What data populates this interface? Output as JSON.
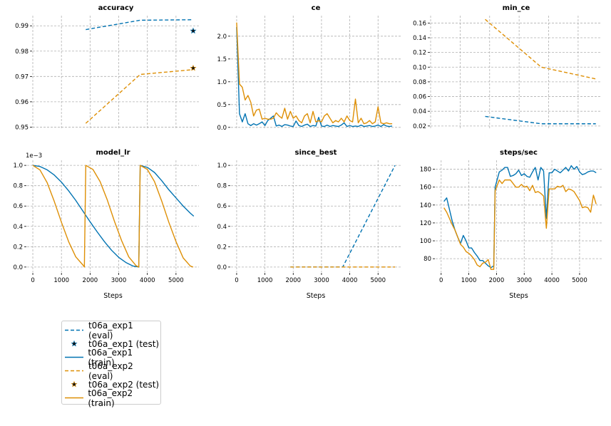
{
  "colors": {
    "exp1": "#0173b2",
    "exp2": "#de8f05"
  },
  "legend": [
    {
      "label": "t06a_exp1 (eval)",
      "style": "dashed",
      "color": "#0173b2"
    },
    {
      "label": "t06a_exp1 (test)",
      "style": "star",
      "color": "#0173b2"
    },
    {
      "label": "t06a_exp1 (train)",
      "style": "solid",
      "color": "#0173b2"
    },
    {
      "label": "t06a_exp2 (eval)",
      "style": "dashed",
      "color": "#de8f05"
    },
    {
      "label": "t06a_exp2 (test)",
      "style": "star",
      "color": "#de8f05"
    },
    {
      "label": "t06a_exp2 (train)",
      "style": "solid",
      "color": "#de8f05"
    }
  ],
  "chart_data": [
    {
      "type": "line",
      "title": "accuracy",
      "xlabel": "",
      "ylabel": "",
      "xlim": [
        0,
        5800
      ],
      "ylim": [
        0.949,
        0.994
      ],
      "yticks": [
        0.95,
        0.96,
        0.97,
        0.98,
        0.99
      ],
      "ytick_labels": [
        "0.95",
        "0.96",
        "0.97",
        "0.98",
        "0.99"
      ],
      "xticks": [
        0,
        1000,
        2000,
        3000,
        4000,
        5000
      ],
      "show_xtick_labels": false,
      "series": [
        {
          "color": "#0173b2",
          "style": "dashed",
          "x": [
            1850,
            3750,
            5600
          ],
          "y": [
            0.9885,
            0.9922,
            0.9924
          ]
        },
        {
          "color": "#0173b2",
          "style": "star",
          "x": [
            5600
          ],
          "y": [
            0.988
          ]
        },
        {
          "color": "#de8f05",
          "style": "dashed",
          "x": [
            1850,
            3750,
            5600
          ],
          "y": [
            0.9515,
            0.9708,
            0.9727
          ]
        },
        {
          "color": "#de8f05",
          "style": "star",
          "x": [
            5600
          ],
          "y": [
            0.9733
          ]
        }
      ]
    },
    {
      "type": "line",
      "title": "ce",
      "xlabel": "",
      "ylabel": "",
      "xlim": [
        -200,
        5800
      ],
      "ylim": [
        -0.05,
        2.45
      ],
      "yticks": [
        0,
        0.5,
        1,
        1.5,
        2
      ],
      "ytick_labels": [
        "0.0",
        "0.5",
        "1.0",
        "1.5",
        "2.0"
      ],
      "xticks": [
        0,
        1000,
        2000,
        3000,
        4000,
        5000
      ],
      "show_xtick_labels": false,
      "series": [
        {
          "color": "#0173b2",
          "style": "solid",
          "x": [
            0,
            100,
            200,
            300,
            400,
            500,
            600,
            700,
            800,
            900,
            1000,
            1100,
            1200,
            1300,
            1400,
            1500,
            1600,
            1700,
            1800,
            1900,
            2000,
            2100,
            2200,
            2300,
            2400,
            2500,
            2600,
            2700,
            2800,
            2900,
            3000,
            3100,
            3200,
            3300,
            3400,
            3500,
            3600,
            3700,
            3800,
            3900,
            4000,
            4100,
            4200,
            4300,
            4400,
            4500,
            4600,
            4700,
            4800,
            4900,
            5000,
            5100,
            5200,
            5300,
            5400,
            5500
          ],
          "y": [
            2.2,
            0.3,
            0.12,
            0.3,
            0.08,
            0.04,
            0.08,
            0.05,
            0.08,
            0.12,
            0.04,
            0.15,
            0.2,
            0.25,
            0.03,
            0.05,
            0.02,
            0.06,
            0.05,
            0.03,
            0.02,
            0.14,
            0.04,
            0.02,
            0.05,
            0.07,
            0.02,
            0.04,
            0.03,
            0.22,
            0.03,
            0.02,
            0.05,
            0.02,
            0.04,
            0.03,
            0.02,
            0.05,
            0.1,
            0.02,
            0.04,
            0.02,
            0.03,
            0.02,
            0.05,
            0.02,
            0.03,
            0.04,
            0.02,
            0.03,
            0.05,
            0.02,
            0.06,
            0.03,
            0.02,
            0.03
          ]
        },
        {
          "color": "#de8f05",
          "style": "solid",
          "x": [
            0,
            100,
            200,
            300,
            400,
            500,
            600,
            700,
            800,
            900,
            1000,
            1100,
            1200,
            1300,
            1400,
            1500,
            1600,
            1700,
            1800,
            1900,
            2000,
            2100,
            2200,
            2300,
            2400,
            2500,
            2600,
            2700,
            2800,
            2900,
            3000,
            3100,
            3200,
            3300,
            3400,
            3500,
            3600,
            3700,
            3800,
            3900,
            4000,
            4100,
            4200,
            4300,
            4400,
            4500,
            4600,
            4700,
            4800,
            4900,
            5000,
            5100,
            5200,
            5300,
            5400,
            5500
          ],
          "y": [
            2.3,
            0.95,
            0.88,
            0.6,
            0.7,
            0.55,
            0.25,
            0.38,
            0.4,
            0.18,
            0.2,
            0.18,
            0.18,
            0.2,
            0.32,
            0.25,
            0.2,
            0.42,
            0.18,
            0.35,
            0.2,
            0.25,
            0.15,
            0.1,
            0.25,
            0.3,
            0.1,
            0.35,
            0.12,
            0.15,
            0.12,
            0.25,
            0.3,
            0.2,
            0.1,
            0.15,
            0.12,
            0.2,
            0.12,
            0.25,
            0.15,
            0.12,
            0.62,
            0.1,
            0.2,
            0.08,
            0.1,
            0.15,
            0.08,
            0.12,
            0.45,
            0.1,
            0.08,
            0.1,
            0.08,
            0.08
          ]
        }
      ]
    },
    {
      "type": "line",
      "title": "min_ce",
      "xlabel": "",
      "ylabel": "",
      "xlim": [
        0,
        5800
      ],
      "ylim": [
        0.015,
        0.17
      ],
      "yticks": [
        0.02,
        0.04,
        0.06,
        0.08,
        0.1,
        0.12,
        0.14,
        0.16
      ],
      "ytick_labels": [
        "0.02",
        "0.04",
        "0.06",
        "0.08",
        "0.10",
        "0.12",
        "0.14",
        "0.16"
      ],
      "xticks": [
        0,
        1000,
        2000,
        3000,
        4000,
        5000
      ],
      "show_xtick_labels": false,
      "series": [
        {
          "color": "#0173b2",
          "style": "dashed",
          "x": [
            1850,
            3750,
            5600
          ],
          "y": [
            0.033,
            0.023,
            0.023
          ]
        },
        {
          "color": "#de8f05",
          "style": "dashed",
          "x": [
            1850,
            3750,
            5600
          ],
          "y": [
            0.165,
            0.1,
            0.084
          ]
        }
      ]
    },
    {
      "type": "line",
      "title": "model_lr",
      "xlabel": "Steps",
      "ylabel": "",
      "multiplier": "1e−3",
      "xlim": [
        -200,
        5800
      ],
      "ylim": [
        -0.05,
        1.05
      ],
      "yticks": [
        0,
        0.2,
        0.4,
        0.6,
        0.8,
        1.0
      ],
      "ytick_labels": [
        "0.0",
        "0.2",
        "0.4",
        "0.6",
        "0.8",
        "1.0"
      ],
      "xticks": [
        0,
        1000,
        2000,
        3000,
        4000,
        5000
      ],
      "xtick_labels": [
        "0",
        "1000",
        "2000",
        "3000",
        "4000",
        "5000"
      ],
      "show_xtick_labels": true,
      "series": [
        {
          "color": "#0173b2",
          "style": "solid",
          "x": [
            0,
            250,
            500,
            750,
            1000,
            1250,
            1500,
            1750,
            2000,
            2250,
            2500,
            2750,
            3000,
            3250,
            3500,
            3700,
            3750,
            4000,
            4250,
            4500,
            4750,
            5000,
            5250,
            5500,
            5620
          ],
          "y": [
            1.0,
            0.989,
            0.956,
            0.905,
            0.835,
            0.75,
            0.655,
            0.55,
            0.445,
            0.345,
            0.25,
            0.165,
            0.095,
            0.045,
            0.01,
            0.0,
            1.0,
            0.98,
            0.93,
            0.85,
            0.76,
            0.68,
            0.6,
            0.53,
            0.5
          ]
        },
        {
          "color": "#de8f05",
          "style": "solid",
          "x": [
            0,
            250,
            500,
            750,
            1000,
            1250,
            1500,
            1750,
            1800,
            1850,
            2100,
            2350,
            2600,
            2850,
            3100,
            3350,
            3600,
            3700,
            3750,
            4000,
            4250,
            4500,
            4750,
            5000,
            5250,
            5500,
            5600
          ],
          "y": [
            1.0,
            0.955,
            0.83,
            0.645,
            0.44,
            0.25,
            0.1,
            0.02,
            0.0,
            1.0,
            0.96,
            0.84,
            0.66,
            0.45,
            0.26,
            0.1,
            0.015,
            0.0,
            1.0,
            0.96,
            0.84,
            0.65,
            0.44,
            0.25,
            0.09,
            0.01,
            0.0
          ]
        }
      ]
    },
    {
      "type": "line",
      "title": "since_best",
      "xlabel": "Steps",
      "ylabel": "",
      "xlim": [
        -200,
        5800
      ],
      "ylim": [
        -0.05,
        1.05
      ],
      "yticks": [
        0,
        0.2,
        0.4,
        0.6,
        0.8,
        1.0
      ],
      "ytick_labels": [
        "0.0",
        "0.2",
        "0.4",
        "0.6",
        "0.8",
        "1.0"
      ],
      "xticks": [
        0,
        1000,
        2000,
        3000,
        4000,
        5000
      ],
      "xtick_labels": [
        "0",
        "1000",
        "2000",
        "3000",
        "4000",
        "5000"
      ],
      "show_xtick_labels": true,
      "series": [
        {
          "color": "#0173b2",
          "style": "dashed",
          "x": [
            1900,
            3750,
            5600
          ],
          "y": [
            0.0,
            0.0,
            1.0
          ]
        },
        {
          "color": "#de8f05",
          "style": "dashed",
          "x": [
            1900,
            3750,
            5600
          ],
          "y": [
            0.0,
            0.0,
            0.0
          ]
        }
      ]
    },
    {
      "type": "line",
      "title": "steps/sec",
      "xlabel": "Steps",
      "ylabel": "",
      "xlim": [
        -200,
        5800
      ],
      "ylim": [
        65,
        190
      ],
      "yticks": [
        80,
        100,
        120,
        140,
        160,
        180
      ],
      "ytick_labels": [
        "80",
        "100",
        "120",
        "140",
        "160",
        "180"
      ],
      "xticks": [
        0,
        1000,
        2000,
        3000,
        4000,
        5000
      ],
      "xtick_labels": [
        "0",
        "1000",
        "2000",
        "3000",
        "4000",
        "5000"
      ],
      "show_xtick_labels": true,
      "series": [
        {
          "color": "#0173b2",
          "style": "solid",
          "x": [
            100,
            200,
            300,
            400,
            500,
            600,
            700,
            800,
            900,
            1000,
            1100,
            1200,
            1300,
            1400,
            1500,
            1600,
            1700,
            1800,
            1900,
            1950,
            2100,
            2200,
            2300,
            2400,
            2500,
            2600,
            2700,
            2800,
            2900,
            3000,
            3100,
            3200,
            3300,
            3400,
            3500,
            3600,
            3700,
            3800,
            3900,
            4000,
            4100,
            4200,
            4300,
            4400,
            4500,
            4600,
            4700,
            4800,
            4900,
            5000,
            5100,
            5200,
            5300,
            5400,
            5500,
            5600
          ],
          "y": [
            144,
            148,
            135,
            122,
            112,
            104,
            97,
            106,
            100,
            92,
            92,
            87,
            83,
            78,
            78,
            75,
            72,
            70,
            72,
            160,
            177,
            179,
            182,
            182,
            172,
            173,
            175,
            179,
            173,
            175,
            172,
            171,
            177,
            182,
            168,
            182,
            178,
            125,
            176,
            176,
            180,
            178,
            176,
            179,
            182,
            178,
            184,
            180,
            183,
            177,
            174,
            175,
            177,
            178,
            178,
            176
          ]
        },
        {
          "color": "#de8f05",
          "style": "solid",
          "x": [
            100,
            200,
            300,
            400,
            500,
            600,
            700,
            800,
            900,
            1000,
            1100,
            1200,
            1300,
            1400,
            1500,
            1600,
            1700,
            1800,
            1900,
            1950,
            2100,
            2200,
            2300,
            2400,
            2500,
            2600,
            2700,
            2800,
            2900,
            3000,
            3100,
            3200,
            3300,
            3400,
            3500,
            3600,
            3700,
            3800,
            3900,
            4000,
            4100,
            4200,
            4300,
            4400,
            4500,
            4600,
            4700,
            4800,
            4900,
            5000,
            5100,
            5200,
            5300,
            5400,
            5500,
            5600
          ],
          "y": [
            137,
            132,
            125,
            118,
            112,
            104,
            96,
            93,
            88,
            86,
            83,
            79,
            73,
            71,
            75,
            76,
            79,
            68,
            68,
            156,
            168,
            164,
            168,
            168,
            168,
            164,
            160,
            160,
            163,
            160,
            161,
            156,
            162,
            154,
            155,
            153,
            150,
            114,
            158,
            158,
            158,
            161,
            160,
            162,
            155,
            158,
            157,
            155,
            150,
            145,
            137,
            138,
            137,
            132,
            151,
            141
          ]
        }
      ]
    }
  ]
}
